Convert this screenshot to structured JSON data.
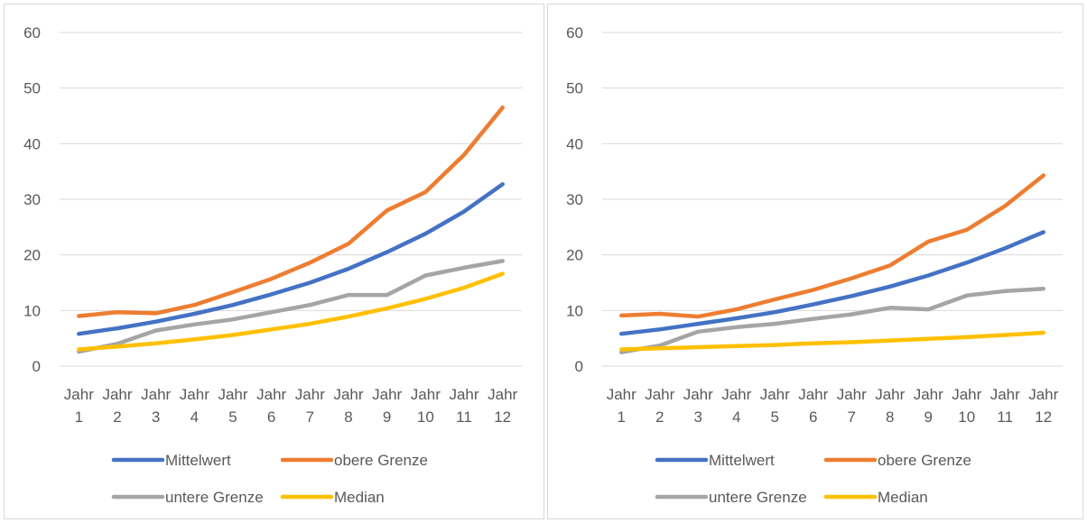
{
  "chart_data": [
    {
      "type": "line",
      "categories": [
        [
          "Jahr",
          "1"
        ],
        [
          "Jahr",
          "2"
        ],
        [
          "Jahr",
          "3"
        ],
        [
          "Jahr",
          "4"
        ],
        [
          "Jahr",
          "5"
        ],
        [
          "Jahr",
          "6"
        ],
        [
          "Jahr",
          "7"
        ],
        [
          "Jahr",
          "8"
        ],
        [
          "Jahr",
          "9"
        ],
        [
          "Jahr",
          "10"
        ],
        [
          "Jahr",
          "11"
        ],
        [
          "Jahr",
          "12"
        ]
      ],
      "ylim": [
        0,
        60
      ],
      "yticks": [
        0,
        10,
        20,
        30,
        40,
        50,
        60
      ],
      "grid": true,
      "legend_position": "bottom",
      "series": [
        {
          "name": "Mittelwert",
          "color": "#4472C4",
          "values": [
            5.8,
            6.8,
            8.0,
            9.4,
            11.0,
            12.9,
            15.0,
            17.5,
            20.5,
            23.8,
            27.8,
            32.7
          ]
        },
        {
          "name": "obere Grenze",
          "color": "#ED7D31",
          "values": [
            9.0,
            9.7,
            9.5,
            11.0,
            13.3,
            15.7,
            18.6,
            22.0,
            28.0,
            31.3,
            38.0,
            46.5
          ]
        },
        {
          "name": "untere Grenze",
          "color": "#A5A5A5",
          "values": [
            2.6,
            4.0,
            6.4,
            7.5,
            8.4,
            9.7,
            11.0,
            12.8,
            12.8,
            16.3,
            17.7,
            18.9
          ]
        },
        {
          "name": "Median",
          "color": "#FFC000",
          "values": [
            3.0,
            3.5,
            4.1,
            4.8,
            5.6,
            6.6,
            7.6,
            8.9,
            10.4,
            12.1,
            14.1,
            16.6
          ]
        }
      ]
    },
    {
      "type": "line",
      "categories": [
        [
          "Jahr",
          "1"
        ],
        [
          "Jahr",
          "2"
        ],
        [
          "Jahr",
          "3"
        ],
        [
          "Jahr",
          "4"
        ],
        [
          "Jahr",
          "5"
        ],
        [
          "Jahr",
          "6"
        ],
        [
          "Jahr",
          "7"
        ],
        [
          "Jahr",
          "8"
        ],
        [
          "Jahr",
          "9"
        ],
        [
          "Jahr",
          "10"
        ],
        [
          "Jahr",
          "11"
        ],
        [
          "Jahr",
          "12"
        ]
      ],
      "ylim": [
        0,
        60
      ],
      "yticks": [
        0,
        10,
        20,
        30,
        40,
        50,
        60
      ],
      "grid": true,
      "legend_position": "bottom",
      "series": [
        {
          "name": "Mittelwert",
          "color": "#4472C4",
          "values": [
            5.8,
            6.6,
            7.6,
            8.6,
            9.7,
            11.1,
            12.6,
            14.3,
            16.3,
            18.6,
            21.2,
            24.1
          ]
        },
        {
          "name": "obere Grenze",
          "color": "#ED7D31",
          "values": [
            9.1,
            9.4,
            8.9,
            10.2,
            12.0,
            13.7,
            15.8,
            18.1,
            22.4,
            24.5,
            28.8,
            34.3
          ]
        },
        {
          "name": "untere Grenze",
          "color": "#A5A5A5",
          "values": [
            2.5,
            3.7,
            6.2,
            7.0,
            7.6,
            8.5,
            9.3,
            10.5,
            10.2,
            12.7,
            13.5,
            13.9
          ]
        },
        {
          "name": "Median",
          "color": "#FFC000",
          "values": [
            3.0,
            3.2,
            3.4,
            3.6,
            3.8,
            4.1,
            4.3,
            4.6,
            4.9,
            5.2,
            5.6,
            6.0
          ]
        }
      ]
    }
  ]
}
